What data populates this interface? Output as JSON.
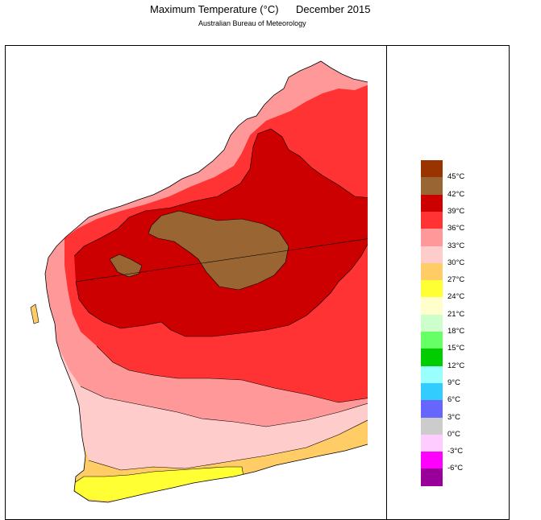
{
  "header": {
    "title": "Maximum Temperature (°C)",
    "date": "December 2015",
    "source": "Australian Bureau of Meteorology"
  },
  "legend": {
    "bands": [
      {
        "color": "#993300"
      },
      {
        "color": "#996633"
      },
      {
        "color": "#cc0000"
      },
      {
        "color": "#ff3333"
      },
      {
        "color": "#ff9999"
      },
      {
        "color": "#ffcccc"
      },
      {
        "color": "#ffcc66"
      },
      {
        "color": "#ffff33"
      },
      {
        "color": "#ffffcc"
      },
      {
        "color": "#ccffcc"
      },
      {
        "color": "#66ff66"
      },
      {
        "color": "#00cc00"
      },
      {
        "color": "#99ffff"
      },
      {
        "color": "#33ccff"
      },
      {
        "color": "#6666ff"
      },
      {
        "color": "#cccccc"
      },
      {
        "color": "#ffccff"
      },
      {
        "color": "#ff00ff"
      },
      {
        "color": "#990099"
      }
    ],
    "labels": [
      "45°C",
      "42°C",
      "39°C",
      "36°C",
      "33°C",
      "30°C",
      "27°C",
      "24°C",
      "21°C",
      "18°C",
      "15°C",
      "12°C",
      "9°C",
      "6°C",
      "3°C",
      "0°C",
      "-3°C",
      "-6°C"
    ]
  },
  "map_colors": {
    "band_42_45": "#996633",
    "band_39_42": "#cc0000",
    "band_36_39": "#ff3333",
    "band_33_36": "#ff9999",
    "band_30_33": "#ffcccc",
    "band_27_30": "#ffcc66",
    "band_24_27": "#ffff33"
  }
}
